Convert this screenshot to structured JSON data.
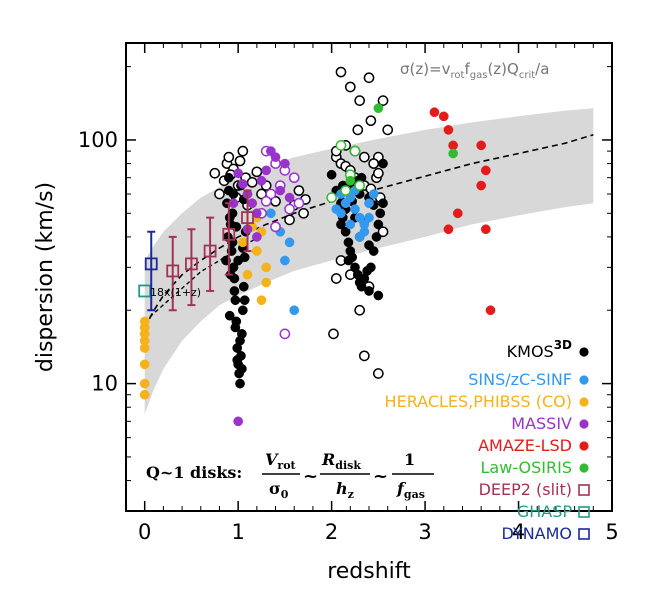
{
  "chart_data": {
    "type": "scatter",
    "xlabel": "redshift",
    "ylabel": "dispersion (km/s)",
    "xlim": [
      -0.2,
      5.0
    ],
    "ylim": [
      3,
      250
    ],
    "y_scale": "log",
    "x_ticks": [
      0,
      1,
      2,
      3,
      4,
      5
    ],
    "x_tick_labels": [
      "0",
      "1",
      "2",
      "3",
      "4",
      "5"
    ],
    "y_ticks": [
      10,
      100
    ],
    "y_tick_labels": [
      "10",
      "100"
    ],
    "grid": false,
    "legend_position": "bottom-right",
    "model": {
      "formula_text": "σ(z)=v_rot f_gas(z) Q_crit/a",
      "color": "#777777",
      "band_color": "#d8d8d8",
      "band": [
        {
          "x": 0.0,
          "low": 7.5,
          "high": 32
        },
        {
          "x": 0.1,
          "low": 9.5,
          "high": 37
        },
        {
          "x": 0.2,
          "low": 11.5,
          "high": 42
        },
        {
          "x": 0.4,
          "low": 15,
          "high": 50
        },
        {
          "x": 0.6,
          "low": 18,
          "high": 58
        },
        {
          "x": 0.8,
          "low": 21,
          "high": 64
        },
        {
          "x": 1.0,
          "low": 23,
          "high": 70
        },
        {
          "x": 1.3,
          "low": 26,
          "high": 78
        },
        {
          "x": 1.6,
          "low": 29,
          "high": 85
        },
        {
          "x": 2.0,
          "low": 32,
          "high": 92
        },
        {
          "x": 2.5,
          "low": 36,
          "high": 101
        },
        {
          "x": 3.0,
          "low": 40,
          "high": 110
        },
        {
          "x": 3.5,
          "low": 45,
          "high": 118
        },
        {
          "x": 4.0,
          "low": 49,
          "high": 125
        },
        {
          "x": 4.5,
          "low": 53,
          "high": 132
        },
        {
          "x": 4.8,
          "low": 55,
          "high": 135
        }
      ],
      "median_line": [
        {
          "x": 0.0,
          "y": 17
        },
        {
          "x": 0.1,
          "y": 20
        },
        {
          "x": 0.2,
          "y": 23
        },
        {
          "x": 0.4,
          "y": 28
        },
        {
          "x": 0.6,
          "y": 32
        },
        {
          "x": 0.8,
          "y": 36
        },
        {
          "x": 1.0,
          "y": 40
        },
        {
          "x": 1.3,
          "y": 45
        },
        {
          "x": 1.6,
          "y": 50
        },
        {
          "x": 2.0,
          "y": 56
        },
        {
          "x": 2.5,
          "y": 63
        },
        {
          "x": 3.0,
          "y": 71
        },
        {
          "x": 3.5,
          "y": 80
        },
        {
          "x": 4.0,
          "y": 88
        },
        {
          "x": 4.5,
          "y": 97
        },
        {
          "x": 4.8,
          "y": 105
        }
      ]
    },
    "scaling_line": {
      "label": "18x(1+z)",
      "color": "#000000",
      "points": [
        {
          "x": 0.0,
          "y": 18
        },
        {
          "x": 0.6,
          "y": 28.8
        },
        {
          "x": 1.2,
          "y": 39.6
        }
      ]
    },
    "series": [
      {
        "name": "KMOS3D",
        "color": "#000000",
        "marker": "circle",
        "filled": [
          [
            0.9,
            62
          ],
          [
            0.92,
            45
          ],
          [
            0.94,
            38
          ],
          [
            0.95,
            30
          ],
          [
            0.96,
            27
          ],
          [
            0.97,
            22
          ],
          [
            0.98,
            18
          ],
          [
            0.99,
            14
          ],
          [
            1.0,
            12
          ],
          [
            1.01,
            11
          ],
          [
            1.02,
            10
          ],
          [
            1.03,
            13
          ],
          [
            1.04,
            16
          ],
          [
            1.05,
            20
          ],
          [
            1.06,
            25
          ],
          [
            1.07,
            33
          ],
          [
            1.08,
            42
          ],
          [
            0.88,
            55
          ],
          [
            0.91,
            48
          ],
          [
            0.93,
            35
          ],
          [
            0.97,
            17
          ],
          [
            0.99,
            12.5
          ],
          [
            1.02,
            15
          ],
          [
            1.04,
            11.5
          ],
          [
            0.95,
            60
          ],
          [
            0.9,
            70
          ],
          [
            1.06,
            57
          ],
          [
            0.92,
            28
          ],
          [
            0.96,
            24
          ],
          [
            1.0,
            32
          ],
          [
            0.89,
            40
          ],
          [
            1.05,
            36
          ],
          [
            0.94,
            50
          ],
          [
            1.03,
            65
          ],
          [
            0.98,
            44
          ],
          [
            1.07,
            22
          ],
          [
            0.87,
            32
          ],
          [
            0.91,
            19
          ],
          [
            2.0,
            72
          ],
          [
            2.05,
            62
          ],
          [
            2.1,
            55
          ],
          [
            2.12,
            48
          ],
          [
            2.15,
            42
          ],
          [
            2.18,
            38
          ],
          [
            2.2,
            35
          ],
          [
            2.22,
            33
          ],
          [
            2.25,
            30
          ],
          [
            2.28,
            28
          ],
          [
            2.3,
            26
          ],
          [
            2.32,
            25
          ],
          [
            2.35,
            27
          ],
          [
            2.38,
            29
          ],
          [
            2.4,
            24
          ],
          [
            2.42,
            30
          ],
          [
            2.45,
            35
          ],
          [
            2.48,
            40
          ],
          [
            2.5,
            45
          ],
          [
            2.52,
            50
          ],
          [
            2.55,
            55
          ],
          [
            2.2,
            64
          ],
          [
            2.3,
            60
          ],
          [
            2.4,
            58
          ],
          [
            2.1,
            45
          ],
          [
            2.15,
            52
          ],
          [
            2.25,
            48
          ],
          [
            2.35,
            46
          ],
          [
            2.45,
            54
          ],
          [
            2.22,
            56
          ],
          [
            2.28,
            68
          ],
          [
            2.32,
            70
          ],
          [
            2.55,
            80
          ],
          [
            2.3,
            40
          ],
          [
            2.4,
            37
          ],
          [
            2.5,
            23
          ],
          [
            2.12,
            65
          ],
          [
            2.18,
            32
          ]
        ],
        "open": [
          [
            0.75,
            73
          ],
          [
            0.8,
            60
          ],
          [
            0.85,
            68
          ],
          [
            0.88,
            80
          ],
          [
            0.9,
            85
          ],
          [
            0.95,
            76
          ],
          [
            1.0,
            65
          ],
          [
            1.05,
            90
          ],
          [
            1.08,
            70
          ],
          [
            0.92,
            72
          ],
          [
            0.98,
            58
          ],
          [
            1.02,
            82
          ],
          [
            1.1,
            54
          ],
          [
            1.15,
            67
          ],
          [
            1.2,
            74
          ],
          [
            1.3,
            65
          ],
          [
            1.25,
            60
          ],
          [
            1.4,
            56
          ],
          [
            1.6,
            54
          ],
          [
            1.65,
            62
          ],
          [
            1.72,
            57
          ],
          [
            1.7,
            50
          ],
          [
            1.55,
            47
          ],
          [
            2.05,
            85
          ],
          [
            2.1,
            80
          ],
          [
            2.15,
            78
          ],
          [
            2.2,
            75
          ],
          [
            2.25,
            70
          ],
          [
            2.3,
            68
          ],
          [
            2.35,
            65
          ],
          [
            2.42,
            63
          ],
          [
            2.48,
            70
          ],
          [
            2.5,
            73
          ],
          [
            2.52,
            58
          ],
          [
            2.55,
            42
          ],
          [
            2.05,
            27
          ],
          [
            2.1,
            32
          ],
          [
            2.2,
            28
          ],
          [
            2.3,
            20
          ],
          [
            2.4,
            25
          ],
          [
            2.02,
            16
          ],
          [
            2.35,
            13
          ],
          [
            2.5,
            11
          ],
          [
            2.2,
            165
          ],
          [
            2.3,
            145
          ],
          [
            2.1,
            190
          ],
          [
            2.4,
            180
          ],
          [
            2.6,
            110
          ],
          [
            2.55,
            145
          ],
          [
            2.5,
            85
          ],
          [
            2.45,
            80
          ],
          [
            2.35,
            85
          ],
          [
            2.25,
            90
          ],
          [
            2.15,
            95
          ],
          [
            2.05,
            90
          ],
          [
            2.28,
            110
          ],
          [
            2.42,
            120
          ]
        ]
      },
      {
        "name": "SINS/zC-SINF",
        "color": "#3399ee",
        "marker": "circle",
        "filled": [
          [
            1.35,
            50
          ],
          [
            1.45,
            42
          ],
          [
            1.5,
            32
          ],
          [
            1.6,
            20
          ],
          [
            1.55,
            38
          ],
          [
            2.1,
            50
          ],
          [
            2.15,
            55
          ],
          [
            2.2,
            58
          ],
          [
            2.25,
            52
          ],
          [
            2.3,
            48
          ],
          [
            2.35,
            45
          ],
          [
            2.4,
            55
          ],
          [
            2.45,
            60
          ],
          [
            2.2,
            45
          ],
          [
            2.3,
            40
          ],
          [
            2.35,
            42
          ],
          [
            2.1,
            60
          ],
          [
            2.25,
            62
          ],
          [
            2.4,
            48
          ],
          [
            2.05,
            52
          ]
        ]
      },
      {
        "name": "HERACLES,PHIBSS (CO)",
        "color": "#f5b21b",
        "marker": "circle",
        "filled": [
          [
            0.0,
            9
          ],
          [
            0.0,
            10
          ],
          [
            0.0,
            12
          ],
          [
            0.0,
            14
          ],
          [
            0.0,
            15
          ],
          [
            0.0,
            16
          ],
          [
            0.0,
            17
          ],
          [
            0.0,
            18
          ],
          [
            1.1,
            60
          ],
          [
            1.15,
            55
          ],
          [
            1.2,
            48
          ],
          [
            1.25,
            42
          ],
          [
            1.3,
            30
          ],
          [
            1.2,
            35
          ],
          [
            1.25,
            22
          ],
          [
            1.1,
            28
          ],
          [
            1.3,
            26
          ],
          [
            1.05,
            38
          ],
          [
            1.15,
            44
          ]
        ]
      },
      {
        "name": "MASSIV",
        "color": "#9933cc",
        "marker": "circle",
        "filled": [
          [
            1.0,
            73
          ],
          [
            1.05,
            66
          ],
          [
            1.1,
            60
          ],
          [
            1.15,
            55
          ],
          [
            1.2,
            50
          ],
          [
            1.35,
            90
          ],
          [
            1.4,
            85
          ],
          [
            1.5,
            80
          ],
          [
            1.3,
            75
          ],
          [
            1.25,
            68
          ],
          [
            1.0,
            7
          ],
          [
            1.1,
            43
          ],
          [
            0.95,
            55
          ],
          [
            1.45,
            62
          ],
          [
            1.55,
            58
          ],
          [
            1.2,
            40
          ]
        ],
        "open": [
          [
            1.3,
            90
          ],
          [
            1.4,
            80
          ],
          [
            1.5,
            75
          ],
          [
            1.45,
            65
          ],
          [
            1.6,
            70
          ],
          [
            1.35,
            60
          ],
          [
            1.55,
            52
          ],
          [
            1.25,
            50
          ],
          [
            1.4,
            44
          ],
          [
            1.5,
            16
          ],
          [
            1.65,
            55
          ],
          [
            1.3,
            56
          ]
        ]
      },
      {
        "name": "AMAZE-LSD",
        "color": "#e31b1b",
        "marker": "circle",
        "filled": [
          [
            3.1,
            130
          ],
          [
            3.2,
            125
          ],
          [
            3.25,
            110
          ],
          [
            3.3,
            95
          ],
          [
            3.35,
            50
          ],
          [
            3.6,
            95
          ],
          [
            3.65,
            75
          ],
          [
            3.6,
            65
          ],
          [
            3.25,
            43
          ],
          [
            3.65,
            43
          ],
          [
            3.7,
            20
          ]
        ]
      },
      {
        "name": "Law-OSIRIS",
        "color": "#33bb33",
        "marker": "circle",
        "filled": [
          [
            2.2,
            68
          ],
          [
            2.5,
            135
          ],
          [
            3.3,
            88
          ]
        ],
        "open": [
          [
            2.1,
            95
          ],
          [
            2.2,
            72
          ],
          [
            2.0,
            58
          ],
          [
            2.15,
            62
          ],
          [
            2.3,
            65
          ],
          [
            2.25,
            90
          ]
        ]
      },
      {
        "name": "DEEP2 (slit)",
        "color": "#a33355",
        "marker": "square-open",
        "points": [
          {
            "x": 0.3,
            "y": 29,
            "ylow": 20,
            "yhigh": 40
          },
          {
            "x": 0.5,
            "y": 31,
            "ylow": 21,
            "yhigh": 43
          },
          {
            "x": 0.7,
            "y": 35,
            "ylow": 24,
            "yhigh": 48
          },
          {
            "x": 0.9,
            "y": 41,
            "ylow": 28,
            "yhigh": 55
          },
          {
            "x": 1.1,
            "y": 48,
            "ylow": 35,
            "yhigh": 62
          }
        ]
      },
      {
        "name": "GHASP",
        "color": "#229988",
        "marker": "square-open",
        "points": [
          {
            "x": 0.0,
            "y": 24,
            "ylow": 24,
            "yhigh": 24
          }
        ]
      },
      {
        "name": "DYNAMO",
        "color": "#1a2a99",
        "marker": "square-open",
        "points": [
          {
            "x": 0.07,
            "y": 31,
            "ylow": 20,
            "yhigh": 42
          }
        ]
      }
    ],
    "legend_entries": [
      {
        "label": "KMOS",
        "sup": "3D",
        "color": "#000000",
        "marker": "filled-circle"
      },
      {
        "label": "SINS/zC-SINF",
        "color": "#3399ee",
        "marker": "filled-circle"
      },
      {
        "label": "HERACLES,PHIBSS (CO)",
        "color": "#f5b21b",
        "marker": "filled-circle"
      },
      {
        "label": "MASSIV",
        "color": "#9933cc",
        "marker": "filled-circle"
      },
      {
        "label": "AMAZE-LSD",
        "color": "#e31b1b",
        "marker": "filled-circle"
      },
      {
        "label": "Law-OSIRIS",
        "color": "#33bb33",
        "marker": "filled-circle"
      },
      {
        "label": "DEEP2 (slit)",
        "color": "#a33355",
        "marker": "open-square"
      },
      {
        "label": "GHASP",
        "color": "#229988",
        "marker": "open-square"
      },
      {
        "label": "DYNAMO",
        "color": "#1a2a99",
        "marker": "open-square"
      }
    ],
    "annotation_equation": {
      "prefix": "Q~1 disks:",
      "term1_num": "V",
      "term1_num_sub": "rot",
      "term1_den": "σ",
      "term1_den_sub": "0",
      "term2_num": "R",
      "term2_num_sub": "disk",
      "term2_den": "h",
      "term2_den_sub": "z",
      "term3_num": "1",
      "term3_den": "f",
      "term3_den_sub": "gas",
      "relation": "~"
    }
  }
}
